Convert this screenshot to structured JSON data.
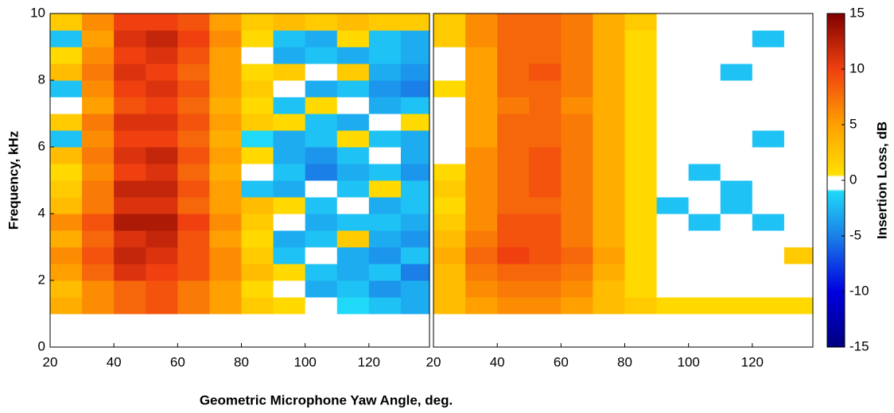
{
  "x_label": "Geometric Microphone Yaw Angle, deg.",
  "chart_data": [
    {
      "type": "heatmap",
      "y_label": "Frequency, kHz",
      "xlim": [
        20,
        139
      ],
      "ylim": [
        0,
        10
      ],
      "xticks": [
        20,
        40,
        60,
        80,
        100,
        120
      ],
      "yticks": [
        0,
        2,
        4,
        6,
        8,
        10
      ],
      "x": [
        25,
        35,
        45,
        55,
        65,
        75,
        85,
        95,
        105,
        115,
        125,
        135
      ],
      "y": [
        1.25,
        1.75,
        2.25,
        2.75,
        3.25,
        3.75,
        4.25,
        4.75,
        5.25,
        5.75,
        6.25,
        6.75,
        7.25,
        7.75,
        8.25,
        8.75,
        9.25,
        9.75
      ],
      "z": [
        [
          4,
          6,
          8,
          9,
          7,
          5,
          2,
          1,
          0,
          -1,
          -2,
          -3
        ],
        [
          3,
          6,
          8,
          9,
          7,
          5,
          1,
          0,
          -3,
          -2,
          -4,
          -3
        ],
        [
          5,
          8,
          11,
          10,
          9,
          6,
          3,
          1,
          -2,
          -3,
          -2,
          -5
        ],
        [
          6,
          9,
          12,
          11,
          9,
          6,
          2,
          -2,
          0,
          -3,
          -4,
          -2
        ],
        [
          4,
          8,
          11,
          12,
          9,
          5,
          1,
          -3,
          -2,
          2,
          -3,
          -4
        ],
        [
          6,
          9,
          13,
          13,
          10,
          6,
          2,
          0,
          -3,
          -2,
          -2,
          -3
        ],
        [
          3,
          7,
          11,
          11,
          8,
          5,
          3,
          1,
          -2,
          0,
          -3,
          -2
        ],
        [
          2,
          7,
          12,
          12,
          9,
          5,
          -2,
          -3,
          0,
          -2,
          1,
          -2
        ],
        [
          1,
          6,
          10,
          11,
          8,
          4,
          0,
          -2,
          -5,
          -3,
          -2,
          -4
        ],
        [
          3,
          7,
          11,
          12,
          9,
          5,
          1,
          -3,
          -4,
          -2,
          0,
          -3
        ],
        [
          -2,
          6,
          10,
          10,
          8,
          4,
          -1,
          -3,
          -2,
          1,
          -2,
          -3
        ],
        [
          2,
          7,
          11,
          11,
          9,
          5,
          2,
          1,
          -2,
          -3,
          0,
          1
        ],
        [
          0,
          5,
          9,
          10,
          8,
          4,
          1,
          -2,
          1,
          0,
          -3,
          -2
        ],
        [
          -2,
          6,
          10,
          11,
          9,
          5,
          2,
          0,
          -3,
          -2,
          -4,
          -5
        ],
        [
          3,
          7,
          11,
          10,
          8,
          5,
          1,
          2,
          0,
          2,
          -3,
          -4
        ],
        [
          1,
          6,
          10,
          11,
          9,
          5,
          0,
          -3,
          -2,
          -3,
          -2,
          -3
        ],
        [
          -2,
          5,
          11,
          12,
          10,
          6,
          1,
          -2,
          -3,
          1,
          -2,
          -3
        ],
        [
          2,
          6,
          10,
          10,
          9,
          5,
          2,
          3,
          2,
          3,
          2,
          2
        ]
      ]
    },
    {
      "type": "heatmap",
      "xlim": [
        20,
        139
      ],
      "ylim": [
        0,
        10
      ],
      "xticks": [
        20,
        40,
        60,
        80,
        100,
        120
      ],
      "x": [
        25,
        35,
        45,
        55,
        65,
        75,
        85,
        95,
        105,
        115,
        125,
        135
      ],
      "y": [
        1.25,
        1.75,
        2.25,
        2.75,
        3.25,
        3.75,
        4.25,
        4.75,
        5.25,
        5.75,
        6.25,
        6.75,
        7.25,
        7.75,
        8.25,
        8.75,
        9.25,
        9.75
      ],
      "z": [
        [
          3,
          5,
          6,
          6,
          5,
          3,
          2,
          1,
          1,
          1,
          1,
          1
        ],
        [
          3,
          6,
          7,
          7,
          6,
          3,
          1,
          0,
          0,
          0,
          0,
          0
        ],
        [
          3,
          7,
          8,
          8,
          7,
          4,
          1,
          0,
          0,
          0,
          0,
          0
        ],
        [
          4,
          8,
          10,
          9,
          8,
          5,
          1,
          0,
          0,
          0,
          0,
          2
        ],
        [
          3,
          7,
          9,
          9,
          7,
          4,
          1,
          0,
          0,
          0,
          0,
          0
        ],
        [
          2,
          6,
          9,
          9,
          7,
          4,
          1,
          0,
          -2,
          0,
          -2,
          0
        ],
        [
          1,
          6,
          8,
          8,
          7,
          4,
          1,
          -2,
          0,
          -2,
          0,
          0
        ],
        [
          2,
          6,
          8,
          9,
          7,
          4,
          1,
          0,
          0,
          -2,
          0,
          0
        ],
        [
          1,
          6,
          8,
          9,
          7,
          4,
          1,
          0,
          -2,
          0,
          0,
          0
        ],
        [
          0,
          6,
          8,
          9,
          7,
          4,
          1,
          0,
          0,
          0,
          0,
          0
        ],
        [
          0,
          5,
          8,
          8,
          7,
          4,
          1,
          0,
          0,
          0,
          -2,
          0
        ],
        [
          0,
          5,
          8,
          8,
          7,
          4,
          1,
          0,
          0,
          0,
          0,
          0
        ],
        [
          0,
          5,
          7,
          8,
          6,
          4,
          1,
          0,
          0,
          0,
          0,
          0
        ],
        [
          1,
          5,
          8,
          8,
          7,
          4,
          1,
          0,
          0,
          0,
          0,
          0
        ],
        [
          0,
          5,
          8,
          9,
          7,
          4,
          1,
          0,
          0,
          -2,
          0,
          0
        ],
        [
          0,
          5,
          8,
          8,
          7,
          4,
          1,
          0,
          0,
          0,
          0,
          0
        ],
        [
          2,
          6,
          8,
          8,
          7,
          4,
          1,
          0,
          0,
          0,
          -2,
          0
        ],
        [
          2,
          6,
          8,
          8,
          7,
          4,
          2,
          0,
          0,
          0,
          0,
          0
        ]
      ]
    }
  ],
  "colorbar": {
    "label": "Insertion Loss, dB",
    "clim": [
      -15,
      15
    ],
    "ticks": [
      -15,
      -10,
      -5,
      0,
      5,
      10,
      15
    ],
    "colormap": [
      {
        "value": -15,
        "color": "#000080"
      },
      {
        "value": -10,
        "color": "#0000e0"
      },
      {
        "value": -5,
        "color": "#1a80e8"
      },
      {
        "value": -1,
        "color": "#20d8f8"
      },
      {
        "value": -0.8,
        "color": "#ffffff"
      },
      {
        "value": 0.3,
        "color": "#ffffff"
      },
      {
        "value": 0.5,
        "color": "#ffe000"
      },
      {
        "value": 5,
        "color": "#ffa000"
      },
      {
        "value": 10,
        "color": "#f04010"
      },
      {
        "value": 15,
        "color": "#800000"
      }
    ]
  }
}
